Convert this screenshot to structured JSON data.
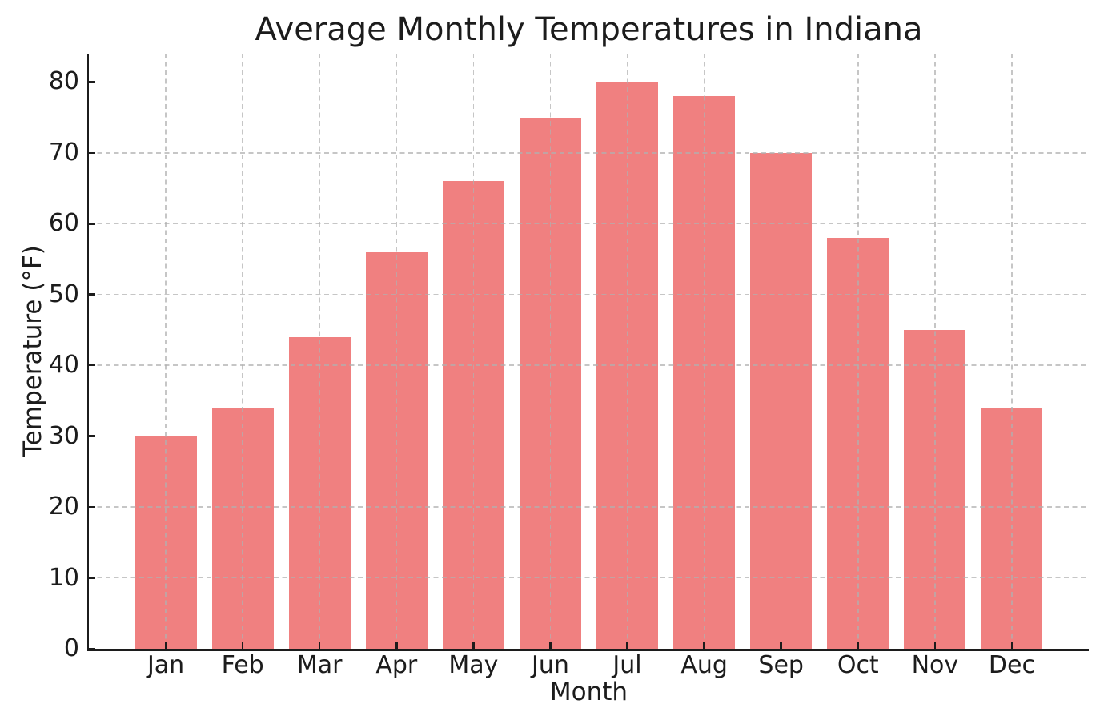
{
  "chart_data": {
    "type": "bar",
    "title": "Average Monthly Temperatures in Indiana",
    "xlabel": "Month",
    "ylabel": "Temperature (°F)",
    "categories": [
      "Jan",
      "Feb",
      "Mar",
      "Apr",
      "May",
      "Jun",
      "Jul",
      "Aug",
      "Sep",
      "Oct",
      "Nov",
      "Dec"
    ],
    "values": [
      30,
      34,
      44,
      56,
      66,
      75,
      80,
      78,
      70,
      58,
      45,
      34
    ],
    "yticks": [
      0,
      10,
      20,
      30,
      40,
      50,
      60,
      70,
      80
    ],
    "ylim": [
      0,
      84
    ],
    "bar_color": "#F08080",
    "bar_width_fraction": 0.8,
    "grid": true,
    "grid_style": "dashed",
    "grid_color_rgba": "rgba(176,176,176,0.72)",
    "grid_above_bars": true,
    "axis_color": "#1c1c1c",
    "text_color": "#1c1c1c",
    "background": "#ffffff",
    "legend": "none",
    "spines": [
      "left",
      "bottom"
    ],
    "tick_direction": "in"
  }
}
